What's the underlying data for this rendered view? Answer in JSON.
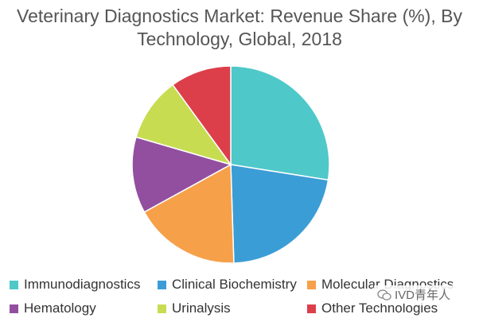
{
  "chart_data": {
    "type": "pie",
    "title_line1": "Veterinary Diagnostics Market: Revenue Share (%), By",
    "title_line2": "Technology, Global, 2018",
    "legend_position": "bottom",
    "categories": [
      "Immunodiagnostics",
      "Clinical Biochemistry",
      "Molecular Diagnostics",
      "Hematology",
      "Urinalysis",
      "Other Technologies"
    ],
    "values": [
      27.5,
      22,
      17.5,
      12.5,
      10.5,
      10
    ],
    "colors": [
      "#4FC8C9",
      "#3B9DD6",
      "#F6A04A",
      "#924FA0",
      "#C8DC52",
      "#DC3F4A"
    ]
  },
  "watermark": {
    "text": "IVD青年人",
    "icon": "wechat-icon"
  }
}
